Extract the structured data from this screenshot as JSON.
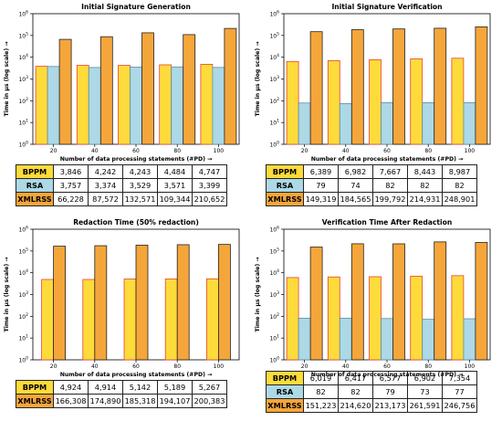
{
  "chart_data": [
    {
      "type": "bar",
      "title": "Initial Signature Generation",
      "xlabel": "Number of data processing statements (#PD) →",
      "ylabel": "Time in µs (log scale) →",
      "yscale": "log",
      "ylim_exponents": [
        0,
        6
      ],
      "categories": [
        "20",
        "40",
        "60",
        "80",
        "100"
      ],
      "series": [
        {
          "name": "BPPM",
          "color": "#FDDB3A",
          "edge": "#E8413B",
          "values": [
            3846,
            4242,
            4243,
            4484,
            4747
          ]
        },
        {
          "name": "RSA",
          "color": "#ADD8E6",
          "edge": "#5A8FA8",
          "values": [
            3757,
            3374,
            3529,
            3571,
            3399
          ]
        },
        {
          "name": "XMLRSS",
          "color": "#F5A63A",
          "edge": "#222222",
          "values": [
            66228,
            87572,
            132571,
            109344,
            210652
          ]
        }
      ],
      "table": [
        {
          "label": "BPPM",
          "cells": [
            "3,846",
            "4,242",
            "4,243",
            "4,484",
            "4,747"
          ]
        },
        {
          "label": "RSA",
          "cells": [
            "3,757",
            "3,374",
            "3,529",
            "3,571",
            "3,399"
          ]
        },
        {
          "label": "XMLRSS",
          "cells": [
            "66,228",
            "87,572",
            "132,571",
            "109,344",
            "210,652"
          ]
        }
      ]
    },
    {
      "type": "bar",
      "title": "Initial Signature Verification",
      "xlabel": "Number of data processing statements (#PD) →",
      "ylabel": "Time in µs (log scale) →",
      "yscale": "log",
      "ylim_exponents": [
        0,
        6
      ],
      "categories": [
        "20",
        "40",
        "60",
        "80",
        "100"
      ],
      "series": [
        {
          "name": "BPPM",
          "color": "#FDDB3A",
          "edge": "#E8413B",
          "values": [
            6389,
            6982,
            7667,
            8443,
            8987
          ]
        },
        {
          "name": "RSA",
          "color": "#ADD8E6",
          "edge": "#5A8FA8",
          "values": [
            79,
            74,
            82,
            82,
            82
          ]
        },
        {
          "name": "XMLRSS",
          "color": "#F5A63A",
          "edge": "#222222",
          "values": [
            149319,
            184565,
            199792,
            214931,
            248901
          ]
        }
      ],
      "table": [
        {
          "label": "BPPM",
          "cells": [
            "6,389",
            "6,982",
            "7,667",
            "8,443",
            "8,987"
          ]
        },
        {
          "label": "RSA",
          "cells": [
            "79",
            "74",
            "82",
            "82",
            "82"
          ]
        },
        {
          "label": "XMLRSS",
          "cells": [
            "149,319",
            "184,565",
            "199,792",
            "214,931",
            "248,901"
          ]
        }
      ]
    },
    {
      "type": "bar",
      "title": "Redaction Time (50% redaction)",
      "xlabel": "Number of data processing statements (#PD) →",
      "ylabel": "Time in µs (log scale) →",
      "yscale": "log",
      "ylim_exponents": [
        0,
        6
      ],
      "categories": [
        "20",
        "40",
        "60",
        "80",
        "100"
      ],
      "series": [
        {
          "name": "BPPM",
          "color": "#FDDB3A",
          "edge": "#E8413B",
          "values": [
            4924,
            4914,
            5142,
            5189,
            5267
          ]
        },
        {
          "name": "XMLRSS",
          "color": "#F5A63A",
          "edge": "#222222",
          "values": [
            166308,
            174890,
            185318,
            194107,
            200383
          ]
        }
      ],
      "table": [
        {
          "label": "BPPM",
          "cells": [
            "4,924",
            "4,914",
            "5,142",
            "5,189",
            "5,267"
          ]
        },
        {
          "label": "XMLRSS",
          "cells": [
            "166,308",
            "174,890",
            "185,318",
            "194,107",
            "200,383"
          ]
        }
      ]
    },
    {
      "type": "bar",
      "title": "Verification Time After Redaction",
      "xlabel": "Number of data processing statements (#PD) →",
      "ylabel": "Time in µs (log scale) →",
      "yscale": "log",
      "ylim_exponents": [
        0,
        6
      ],
      "categories": [
        "20",
        "40",
        "60",
        "80",
        "100"
      ],
      "series": [
        {
          "name": "BPPM",
          "color": "#FDDB3A",
          "edge": "#E8413B",
          "values": [
            6019,
            6417,
            6577,
            6902,
            7354
          ]
        },
        {
          "name": "RSA",
          "color": "#ADD8E6",
          "edge": "#5A8FA8",
          "values": [
            82,
            82,
            79,
            73,
            77
          ]
        },
        {
          "name": "XMLRSS",
          "color": "#F5A63A",
          "edge": "#222222",
          "values": [
            151223,
            214620,
            213173,
            261591,
            246756
          ]
        }
      ],
      "table": [
        {
          "label": "BPPM",
          "cells": [
            "6,019",
            "6,417",
            "6,577",
            "6,902",
            "7,354"
          ]
        },
        {
          "label": "RSA",
          "cells": [
            "82",
            "82",
            "79",
            "73",
            "77"
          ]
        },
        {
          "label": "XMLRSS",
          "cells": [
            "151,223",
            "214,620",
            "213,173",
            "261,591",
            "246,756"
          ]
        }
      ]
    }
  ]
}
